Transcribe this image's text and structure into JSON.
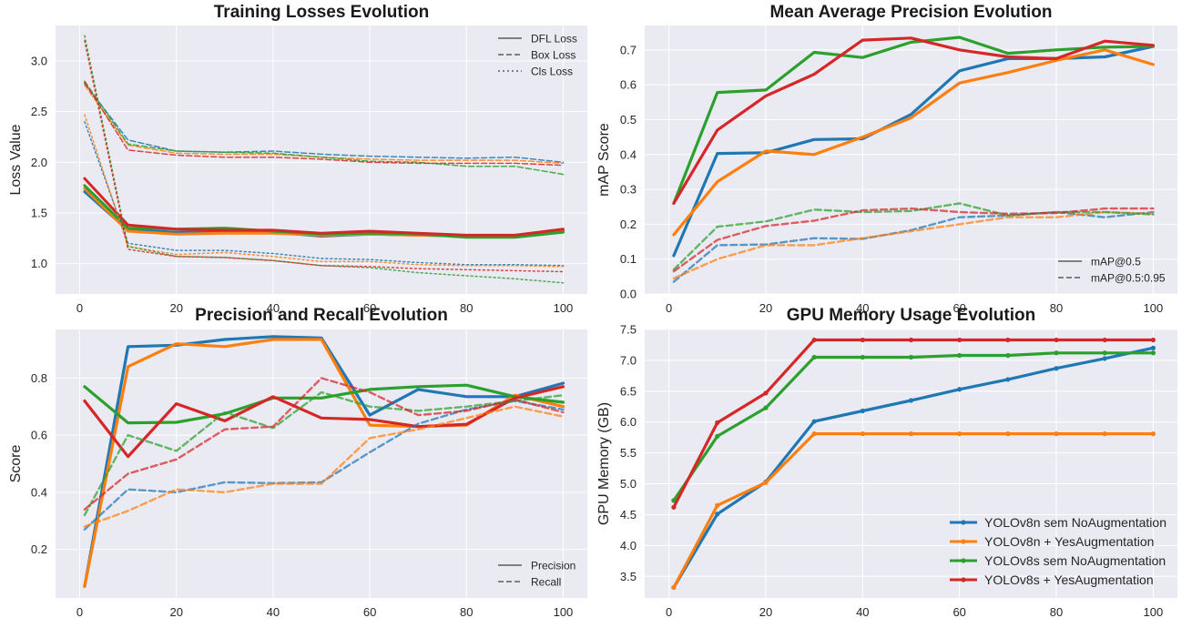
{
  "colors": {
    "YOLOv8n sem NoAugmentation": "#1f77b4",
    "YOLOv8n + YesAugmentation": "#ff7f0e",
    "YOLOv8s sem NoAugmentation": "#2ca02c",
    "YOLOv8s + YesAugmentation": "#d62728",
    "plot_background": "#eaeaf2",
    "grid": "#ffffff"
  },
  "chart_data": [
    {
      "id": "losses",
      "type": "line",
      "title": "Training Losses Evolution",
      "xlabel": "",
      "ylabel": "Loss Value",
      "xlim": [
        -5,
        105
      ],
      "ylim": [
        0.7,
        3.35
      ],
      "xticks": [
        0,
        20,
        40,
        60,
        80,
        100
      ],
      "yticks": [
        1.0,
        1.5,
        2.0,
        2.5,
        3.0
      ],
      "grid": true,
      "legend_position": "top-right",
      "legend": [
        {
          "label": "DFL Loss",
          "dash": "solid"
        },
        {
          "label": "Box Loss",
          "dash": "dashed"
        },
        {
          "label": "Cls Loss",
          "dash": "dotted"
        }
      ],
      "x": [
        1,
        10,
        20,
        30,
        40,
        50,
        60,
        70,
        80,
        90,
        100
      ],
      "series": [
        {
          "model": "YOLOv8n sem NoAugmentation",
          "metric": "dfl",
          "values": [
            1.71,
            1.33,
            1.31,
            1.32,
            1.31,
            1.27,
            1.29,
            1.28,
            1.27,
            1.27,
            1.32
          ]
        },
        {
          "model": "YOLOv8n + YesAugmentation",
          "metric": "dfl",
          "values": [
            1.74,
            1.32,
            1.29,
            1.3,
            1.3,
            1.28,
            1.29,
            1.28,
            1.27,
            1.27,
            1.33
          ]
        },
        {
          "model": "YOLOv8s sem NoAugmentation",
          "metric": "dfl",
          "values": [
            1.77,
            1.35,
            1.34,
            1.35,
            1.32,
            1.29,
            1.3,
            1.29,
            1.26,
            1.26,
            1.31
          ]
        },
        {
          "model": "YOLOv8s + YesAugmentation",
          "metric": "dfl",
          "values": [
            1.84,
            1.38,
            1.34,
            1.33,
            1.33,
            1.3,
            1.32,
            1.3,
            1.28,
            1.28,
            1.34
          ]
        },
        {
          "model": "YOLOv8n sem NoAugmentation",
          "metric": "box",
          "values": [
            2.78,
            2.22,
            2.11,
            2.1,
            2.11,
            2.08,
            2.06,
            2.05,
            2.04,
            2.05,
            2.0
          ]
        },
        {
          "model": "YOLOv8n + YesAugmentation",
          "metric": "box",
          "values": [
            2.76,
            2.17,
            2.09,
            2.08,
            2.08,
            2.05,
            2.03,
            2.02,
            2.02,
            2.02,
            1.99
          ]
        },
        {
          "model": "YOLOv8s sem NoAugmentation",
          "metric": "box",
          "values": [
            2.8,
            2.18,
            2.11,
            2.1,
            2.09,
            2.05,
            2.01,
            2.0,
            1.96,
            1.96,
            1.88
          ]
        },
        {
          "model": "YOLOv8s + YesAugmentation",
          "metric": "box",
          "values": [
            2.79,
            2.12,
            2.07,
            2.05,
            2.05,
            2.03,
            2.0,
            1.99,
            1.99,
            1.99,
            1.97
          ]
        },
        {
          "model": "YOLOv8n sem NoAugmentation",
          "metric": "cls",
          "values": [
            2.4,
            1.2,
            1.13,
            1.13,
            1.1,
            1.05,
            1.04,
            1.01,
            0.99,
            0.99,
            0.98
          ]
        },
        {
          "model": "YOLOv8n + YesAugmentation",
          "metric": "cls",
          "values": [
            2.47,
            1.17,
            1.09,
            1.11,
            1.07,
            1.02,
            1.02,
            0.99,
            0.98,
            0.98,
            0.97
          ]
        },
        {
          "model": "YOLOv8s sem NoAugmentation",
          "metric": "cls",
          "values": [
            3.25,
            1.17,
            1.07,
            1.06,
            1.03,
            0.98,
            0.96,
            0.91,
            0.88,
            0.85,
            0.81
          ]
        },
        {
          "model": "YOLOv8s + YesAugmentation",
          "metric": "cls",
          "values": [
            3.2,
            1.14,
            1.07,
            1.06,
            1.03,
            0.98,
            0.97,
            0.95,
            0.94,
            0.93,
            0.92
          ]
        }
      ]
    },
    {
      "id": "map",
      "type": "line",
      "title": "Mean Average Precision Evolution",
      "xlabel": "",
      "ylabel": "mAP Score",
      "xlim": [
        -5,
        105
      ],
      "ylim": [
        0.0,
        0.77
      ],
      "xticks": [
        0,
        20,
        40,
        60,
        80,
        100
      ],
      "yticks": [
        0.0,
        0.1,
        0.2,
        0.3,
        0.4,
        0.5,
        0.6,
        0.7
      ],
      "grid": true,
      "legend_position": "bottom-right",
      "legend": [
        {
          "label": "mAP@0.5",
          "dash": "solid"
        },
        {
          "label": "mAP@0.5:0.95",
          "dash": "dashed"
        }
      ],
      "x": [
        1,
        10,
        20,
        30,
        40,
        50,
        60,
        70,
        80,
        90,
        100
      ],
      "series": [
        {
          "model": "YOLOv8n sem NoAugmentation",
          "metric": "map50",
          "values": [
            0.11,
            0.403,
            0.405,
            0.443,
            0.445,
            0.515,
            0.64,
            0.675,
            0.675,
            0.68,
            0.71
          ]
        },
        {
          "model": "YOLOv8n + YesAugmentation",
          "metric": "map50",
          "values": [
            0.17,
            0.322,
            0.41,
            0.4,
            0.45,
            0.505,
            0.605,
            0.635,
            0.67,
            0.7,
            0.658
          ]
        },
        {
          "model": "YOLOv8s sem NoAugmentation",
          "metric": "map50",
          "values": [
            0.26,
            0.578,
            0.585,
            0.693,
            0.678,
            0.722,
            0.736,
            0.69,
            0.7,
            0.708,
            0.71
          ]
        },
        {
          "model": "YOLOv8s + YesAugmentation",
          "metric": "map50",
          "values": [
            0.26,
            0.47,
            0.568,
            0.63,
            0.728,
            0.734,
            0.7,
            0.68,
            0.675,
            0.725,
            0.713
          ]
        },
        {
          "model": "YOLOv8n sem NoAugmentation",
          "metric": "map5095",
          "values": [
            0.035,
            0.14,
            0.142,
            0.16,
            0.158,
            0.183,
            0.22,
            0.225,
            0.235,
            0.22,
            0.235
          ]
        },
        {
          "model": "YOLOv8n + YesAugmentation",
          "metric": "map5095",
          "values": [
            0.045,
            0.1,
            0.14,
            0.14,
            0.16,
            0.18,
            0.2,
            0.22,
            0.22,
            0.235,
            0.23
          ]
        },
        {
          "model": "YOLOv8s sem NoAugmentation",
          "metric": "map5095",
          "values": [
            0.07,
            0.193,
            0.208,
            0.242,
            0.235,
            0.238,
            0.26,
            0.225,
            0.235,
            0.235,
            0.228
          ]
        },
        {
          "model": "YOLOv8s + YesAugmentation",
          "metric": "map5095",
          "values": [
            0.065,
            0.155,
            0.195,
            0.21,
            0.24,
            0.245,
            0.235,
            0.23,
            0.232,
            0.245,
            0.245
          ]
        }
      ]
    },
    {
      "id": "precision_recall",
      "type": "line",
      "title": "Precision and Recall Evolution",
      "xlabel": "",
      "ylabel": "Score",
      "xlim": [
        -5,
        105
      ],
      "ylim": [
        0.03,
        0.97
      ],
      "xticks": [
        0,
        20,
        40,
        60,
        80,
        100
      ],
      "yticks": [
        0.2,
        0.4,
        0.6,
        0.8
      ],
      "grid": true,
      "legend_position": "bottom-right",
      "legend": [
        {
          "label": "Precision",
          "dash": "solid"
        },
        {
          "label": "Recall",
          "dash": "dashed"
        }
      ],
      "x": [
        1,
        10,
        20,
        30,
        40,
        50,
        60,
        70,
        80,
        90,
        100
      ],
      "series": [
        {
          "model": "YOLOv8n sem NoAugmentation",
          "metric": "precision",
          "values": [
            0.07,
            0.91,
            0.915,
            0.935,
            0.945,
            0.94,
            0.67,
            0.76,
            0.735,
            0.735,
            0.782
          ]
        },
        {
          "model": "YOLOv8n + YesAugmentation",
          "metric": "precision",
          "values": [
            0.07,
            0.84,
            0.92,
            0.91,
            0.935,
            0.935,
            0.635,
            0.63,
            0.635,
            0.74,
            0.7
          ]
        },
        {
          "model": "YOLOv8s sem NoAugmentation",
          "metric": "precision",
          "values": [
            0.77,
            0.643,
            0.645,
            0.675,
            0.73,
            0.73,
            0.76,
            0.77,
            0.775,
            0.735,
            0.715
          ]
        },
        {
          "model": "YOLOv8s + YesAugmentation",
          "metric": "precision",
          "values": [
            0.72,
            0.525,
            0.71,
            0.65,
            0.735,
            0.66,
            0.655,
            0.63,
            0.638,
            0.73,
            0.77
          ]
        },
        {
          "model": "YOLOv8n sem NoAugmentation",
          "metric": "recall",
          "values": [
            0.27,
            0.41,
            0.4,
            0.435,
            0.432,
            0.435,
            0.54,
            0.64,
            0.69,
            0.72,
            0.69
          ]
        },
        {
          "model": "YOLOv8n + YesAugmentation",
          "metric": "recall",
          "values": [
            0.28,
            0.335,
            0.41,
            0.4,
            0.43,
            0.43,
            0.59,
            0.62,
            0.66,
            0.7,
            0.665
          ]
        },
        {
          "model": "YOLOv8s sem NoAugmentation",
          "metric": "recall",
          "values": [
            0.32,
            0.6,
            0.545,
            0.68,
            0.625,
            0.75,
            0.7,
            0.685,
            0.7,
            0.72,
            0.74
          ]
        },
        {
          "model": "YOLOv8s + YesAugmentation",
          "metric": "recall",
          "values": [
            0.34,
            0.465,
            0.515,
            0.62,
            0.63,
            0.8,
            0.75,
            0.67,
            0.685,
            0.725,
            0.68
          ]
        }
      ]
    },
    {
      "id": "gpu",
      "type": "line",
      "title": "GPU Memory Usage Evolution",
      "xlabel": "",
      "ylabel": "GPU Memory (GB)",
      "xlim": [
        -5,
        105
      ],
      "ylim": [
        3.15,
        7.5
      ],
      "xticks": [
        0,
        20,
        40,
        60,
        80,
        100
      ],
      "yticks": [
        3.5,
        4.0,
        4.5,
        5.0,
        5.5,
        6.0,
        6.5,
        7.0,
        7.5
      ],
      "grid": true,
      "markers": true,
      "legend_position": "bottom-right",
      "legend": [
        {
          "label": "YOLOv8n sem NoAugmentation",
          "model": "YOLOv8n sem NoAugmentation"
        },
        {
          "label": "YOLOv8n + YesAugmentation",
          "model": "YOLOv8n + YesAugmentation"
        },
        {
          "label": "YOLOv8s sem NoAugmentation",
          "model": "YOLOv8s sem NoAugmentation"
        },
        {
          "label": "YOLOv8s + YesAugmentation",
          "model": "YOLOv8s + YesAugmentation"
        }
      ],
      "x": [
        1,
        10,
        20,
        30,
        40,
        50,
        60,
        70,
        80,
        90,
        100
      ],
      "series": [
        {
          "model": "YOLOv8n sem NoAugmentation",
          "metric": "gpu",
          "values": [
            3.32,
            4.51,
            5.03,
            6.01,
            6.18,
            6.35,
            6.53,
            6.69,
            6.87,
            7.03,
            7.2
          ]
        },
        {
          "model": "YOLOv8n + YesAugmentation",
          "metric": "gpu",
          "values": [
            3.32,
            4.65,
            5.02,
            5.81,
            5.81,
            5.81,
            5.81,
            5.81,
            5.81,
            5.81,
            5.81
          ]
        },
        {
          "model": "YOLOv8s sem NoAugmentation",
          "metric": "gpu",
          "values": [
            4.73,
            5.77,
            6.23,
            7.05,
            7.05,
            7.05,
            7.08,
            7.08,
            7.12,
            7.12,
            7.12
          ]
        },
        {
          "model": "YOLOv8s + YesAugmentation",
          "metric": "gpu",
          "values": [
            4.62,
            5.99,
            6.47,
            7.33,
            7.33,
            7.33,
            7.33,
            7.33,
            7.33,
            7.33,
            7.33
          ]
        }
      ]
    }
  ]
}
